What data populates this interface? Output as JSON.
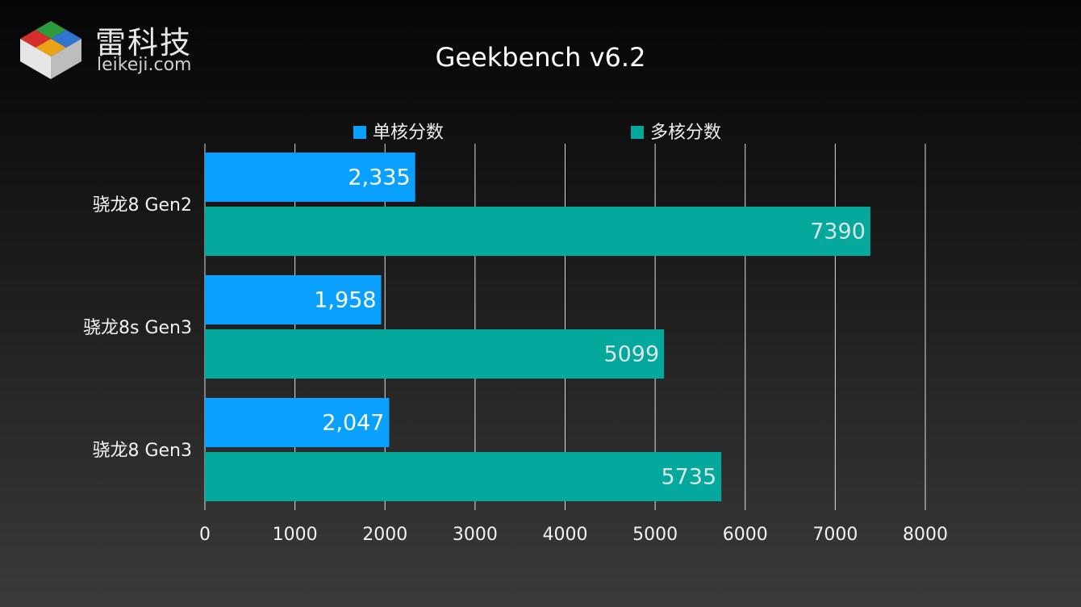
{
  "brand": {
    "name_cn": "雷科技",
    "site": "leikeji.com",
    "logo_icon": "cube-logo-icon"
  },
  "colors": {
    "single_core": "#0aa0ff",
    "multi_core": "#05a89c"
  },
  "chart_data": {
    "type": "bar",
    "orientation": "horizontal",
    "title": "Geekbench v6.2",
    "categories": [
      "骁龙8 Gen2",
      "骁龙8s Gen3",
      "骁龙8 Gen3"
    ],
    "series": [
      {
        "name": "单核分数",
        "values": [
          2335,
          1958,
          2047
        ],
        "labels": [
          "2,335",
          "1,958",
          "2,047"
        ]
      },
      {
        "name": "多核分数",
        "values": [
          7390,
          5099,
          5735
        ],
        "labels": [
          "7390",
          "5099",
          "5735"
        ]
      }
    ],
    "xlim": [
      0,
      8000
    ],
    "xticks": [
      0,
      1000,
      2000,
      3000,
      4000,
      5000,
      6000,
      7000,
      8000
    ],
    "grid": true,
    "legend_position": "top"
  }
}
